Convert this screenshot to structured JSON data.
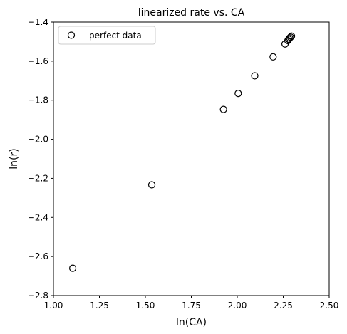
{
  "chart_data": {
    "type": "scatter",
    "title": "linearized rate vs. CA",
    "xlabel": "ln(CA)",
    "ylabel": "ln(r)",
    "xlim": [
      1.0,
      2.5
    ],
    "ylim": [
      -2.8,
      -1.4
    ],
    "xticks": [
      "1.00",
      "1.25",
      "1.50",
      "1.75",
      "2.00",
      "2.25",
      "2.50"
    ],
    "yticks": [
      "−2.8",
      "−2.6",
      "−2.4",
      "−2.2",
      "−2.0",
      "−1.8",
      "−1.6",
      "−1.4"
    ],
    "grid": false,
    "legend": "top-left",
    "series": [
      {
        "name": "perfect data",
        "marker": "open-circle",
        "color": "#000000",
        "x": [
          1.105,
          1.535,
          1.925,
          2.005,
          2.095,
          2.195,
          2.26,
          2.275,
          2.28,
          2.285,
          2.29,
          2.295
        ],
        "y": [
          -2.66,
          -2.233,
          -1.847,
          -1.765,
          -1.675,
          -1.578,
          -1.512,
          -1.495,
          -1.488,
          -1.482,
          -1.477,
          -1.472
        ]
      }
    ]
  }
}
